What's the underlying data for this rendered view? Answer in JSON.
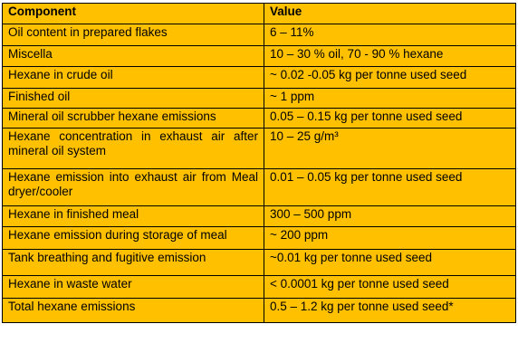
{
  "table": {
    "headers": [
      "Component",
      "Value"
    ],
    "rows": [
      {
        "component": "Oil content in prepared flakes",
        "value": "6 – 11%"
      },
      {
        "component": "Miscella",
        "value": "10 – 30 % oil, 70 - 90 % hexane"
      },
      {
        "component": "Hexane in crude oil",
        "value": "~ 0.02 -0.05 kg per tonne used seed"
      },
      {
        "component": "Finished oil",
        "value": "~ 1 ppm"
      },
      {
        "component": "Mineral oil scrubber hexane emissions",
        "value": "0.05 – 0.15 kg per tonne used seed"
      },
      {
        "component": "Hexane concentration in exhaust air after mineral oil system",
        "value": "10 – 25 g/m³"
      },
      {
        "component": "Hexane emission into exhaust air from Meal dryer/cooler",
        "value": "0.01 – 0.05 kg per tonne used seed"
      },
      {
        "component": "Hexane in finished meal",
        "value": "300 – 500 ppm"
      },
      {
        "component": "Hexane emission during storage of meal",
        "value": "~ 200 ppm"
      },
      {
        "component": "Tank breathing and fugitive emission",
        "value": "~0.01 kg per tonne used seed"
      },
      {
        "component": "Hexane in waste water",
        "value": "< 0.0001 kg per tonne used seed"
      },
      {
        "component": "Total hexane emissions",
        "value": "0.5 – 1.2 kg per tonne used seed*"
      }
    ]
  },
  "colors": {
    "cell_background": "#ffc000",
    "border": "#000000",
    "text": "#000000"
  }
}
